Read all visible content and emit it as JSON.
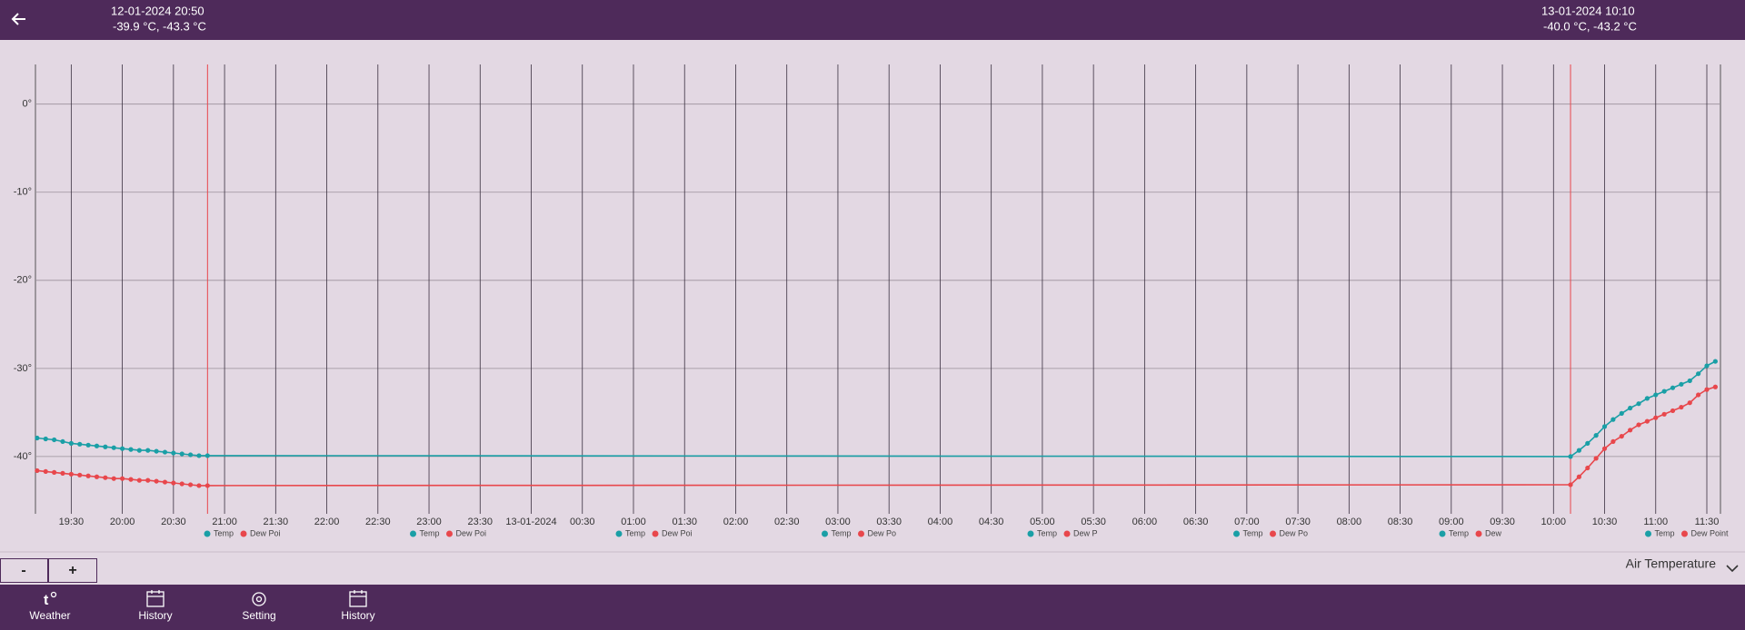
{
  "header": {
    "left": {
      "time": "12-01-2024 20:50",
      "readout": "-39.9 °C, -43.3 °C"
    },
    "right": {
      "time": "13-01-2024 10:10",
      "readout": "-40.0 °C, -43.2 °C"
    }
  },
  "chart_data": {
    "type": "line",
    "x": [
      "12-01-2024 19:10",
      "12-01-2024 19:15",
      "12-01-2024 19:20",
      "12-01-2024 19:25",
      "12-01-2024 19:30",
      "12-01-2024 19:35",
      "12-01-2024 19:40",
      "12-01-2024 19:45",
      "12-01-2024 19:50",
      "12-01-2024 19:55",
      "12-01-2024 20:00",
      "12-01-2024 20:05",
      "12-01-2024 20:10",
      "12-01-2024 20:15",
      "12-01-2024 20:20",
      "12-01-2024 20:25",
      "12-01-2024 20:30",
      "12-01-2024 20:35",
      "12-01-2024 20:40",
      "12-01-2024 20:45",
      "12-01-2024 20:50",
      "13-01-2024 10:10",
      "13-01-2024 10:15",
      "13-01-2024 10:20",
      "13-01-2024 10:25",
      "13-01-2024 10:30",
      "13-01-2024 10:35",
      "13-01-2024 10:40",
      "13-01-2024 10:45",
      "13-01-2024 10:50",
      "13-01-2024 10:55",
      "13-01-2024 11:00",
      "13-01-2024 11:05",
      "13-01-2024 11:10",
      "13-01-2024 11:15",
      "13-01-2024 11:20",
      "13-01-2024 11:25",
      "13-01-2024 11:30",
      "13-01-2024 11:35"
    ],
    "series": [
      {
        "name": "Temp",
        "color": "#1a9fa6",
        "values": [
          -37.9,
          -38.0,
          -38.1,
          -38.3,
          -38.5,
          -38.6,
          -38.7,
          -38.8,
          -38.9,
          -39.0,
          -39.1,
          -39.2,
          -39.3,
          -39.3,
          -39.4,
          -39.5,
          -39.6,
          -39.7,
          -39.8,
          -39.9,
          -39.9,
          -40.0,
          -39.3,
          -38.5,
          -37.6,
          -36.6,
          -35.8,
          -35.1,
          -34.5,
          -34.0,
          -33.4,
          -33.0,
          -32.6,
          -32.2,
          -31.8,
          -31.4,
          -30.6,
          -29.7,
          -29.2
        ]
      },
      {
        "name": "Dew Point",
        "color": "#e8474c",
        "values": [
          -41.6,
          -41.7,
          -41.8,
          -41.9,
          -42.0,
          -42.1,
          -42.2,
          -42.3,
          -42.4,
          -42.5,
          -42.5,
          -42.6,
          -42.7,
          -42.7,
          -42.8,
          -42.9,
          -43.0,
          -43.1,
          -43.2,
          -43.3,
          -43.3,
          -43.2,
          -42.3,
          -41.3,
          -40.2,
          -39.1,
          -38.3,
          -37.7,
          -37.0,
          -36.4,
          -36.0,
          -35.6,
          -35.2,
          -34.8,
          -34.4,
          -33.9,
          -33.0,
          -32.4,
          -32.1
        ]
      }
    ],
    "xlim": [
      "12-01-2024 19:09",
      "13-01-2024 11:38"
    ],
    "xticks": [
      {
        "value": "12-01-2024 19:30",
        "label": "19:30"
      },
      {
        "value": "12-01-2024 20:00",
        "label": "20:00"
      },
      {
        "value": "12-01-2024 20:30",
        "label": "20:30"
      },
      {
        "value": "12-01-2024 21:00",
        "label": "21:00"
      },
      {
        "value": "12-01-2024 21:30",
        "label": "21:30"
      },
      {
        "value": "12-01-2024 22:00",
        "label": "22:00"
      },
      {
        "value": "12-01-2024 22:30",
        "label": "22:30"
      },
      {
        "value": "12-01-2024 23:00",
        "label": "23:00"
      },
      {
        "value": "12-01-2024 23:30",
        "label": "23:30"
      },
      {
        "value": "13-01-2024 00:00",
        "label": "13-01-2024"
      },
      {
        "value": "13-01-2024 00:30",
        "label": "00:30"
      },
      {
        "value": "13-01-2024 01:00",
        "label": "01:00"
      },
      {
        "value": "13-01-2024 01:30",
        "label": "01:30"
      },
      {
        "value": "13-01-2024 02:00",
        "label": "02:00"
      },
      {
        "value": "13-01-2024 02:30",
        "label": "02:30"
      },
      {
        "value": "13-01-2024 03:00",
        "label": "03:00"
      },
      {
        "value": "13-01-2024 03:30",
        "label": "03:30"
      },
      {
        "value": "13-01-2024 04:00",
        "label": "04:00"
      },
      {
        "value": "13-01-2024 04:30",
        "label": "04:30"
      },
      {
        "value": "13-01-2024 05:00",
        "label": "05:00"
      },
      {
        "value": "13-01-2024 05:30",
        "label": "05:30"
      },
      {
        "value": "13-01-2024 06:00",
        "label": "06:00"
      },
      {
        "value": "13-01-2024 06:30",
        "label": "06:30"
      },
      {
        "value": "13-01-2024 07:00",
        "label": "07:00"
      },
      {
        "value": "13-01-2024 07:30",
        "label": "07:30"
      },
      {
        "value": "13-01-2024 08:00",
        "label": "08:00"
      },
      {
        "value": "13-01-2024 08:30",
        "label": "08:30"
      },
      {
        "value": "13-01-2024 09:00",
        "label": "09:00"
      },
      {
        "value": "13-01-2024 09:30",
        "label": "09:30"
      },
      {
        "value": "13-01-2024 10:00",
        "label": "10:00"
      },
      {
        "value": "13-01-2024 10:30",
        "label": "10:30"
      },
      {
        "value": "13-01-2024 11:00",
        "label": "11:00"
      },
      {
        "value": "13-01-2024 11:30",
        "label": "11:30"
      }
    ],
    "ylim": [
      -46.5,
      4.5
    ],
    "yticks": [
      {
        "value": 0,
        "label": "0°"
      },
      {
        "value": -10,
        "label": "-10°"
      },
      {
        "value": -20,
        "label": "-20°"
      },
      {
        "value": -30,
        "label": "-30°"
      },
      {
        "value": -40,
        "label": "-40°"
      }
    ],
    "grid": true,
    "mini_legends": [
      [
        "Temp",
        "Dew Poi"
      ],
      [
        "Temp",
        "Dew Poi"
      ],
      [
        "Temp",
        "Dew Poi"
      ],
      [
        "Temp",
        "Dew Po"
      ],
      [
        "Temp",
        "Dew P"
      ],
      [
        "Temp",
        "Dew Po"
      ],
      [
        "Temp",
        "Dew"
      ],
      [
        "Temp",
        "Dew Point"
      ]
    ]
  },
  "controls": {
    "zoom_out": "-",
    "zoom_in": "+",
    "selector": "Air Temperature"
  },
  "nav": [
    "Weather",
    "History",
    "Setting",
    "History"
  ]
}
